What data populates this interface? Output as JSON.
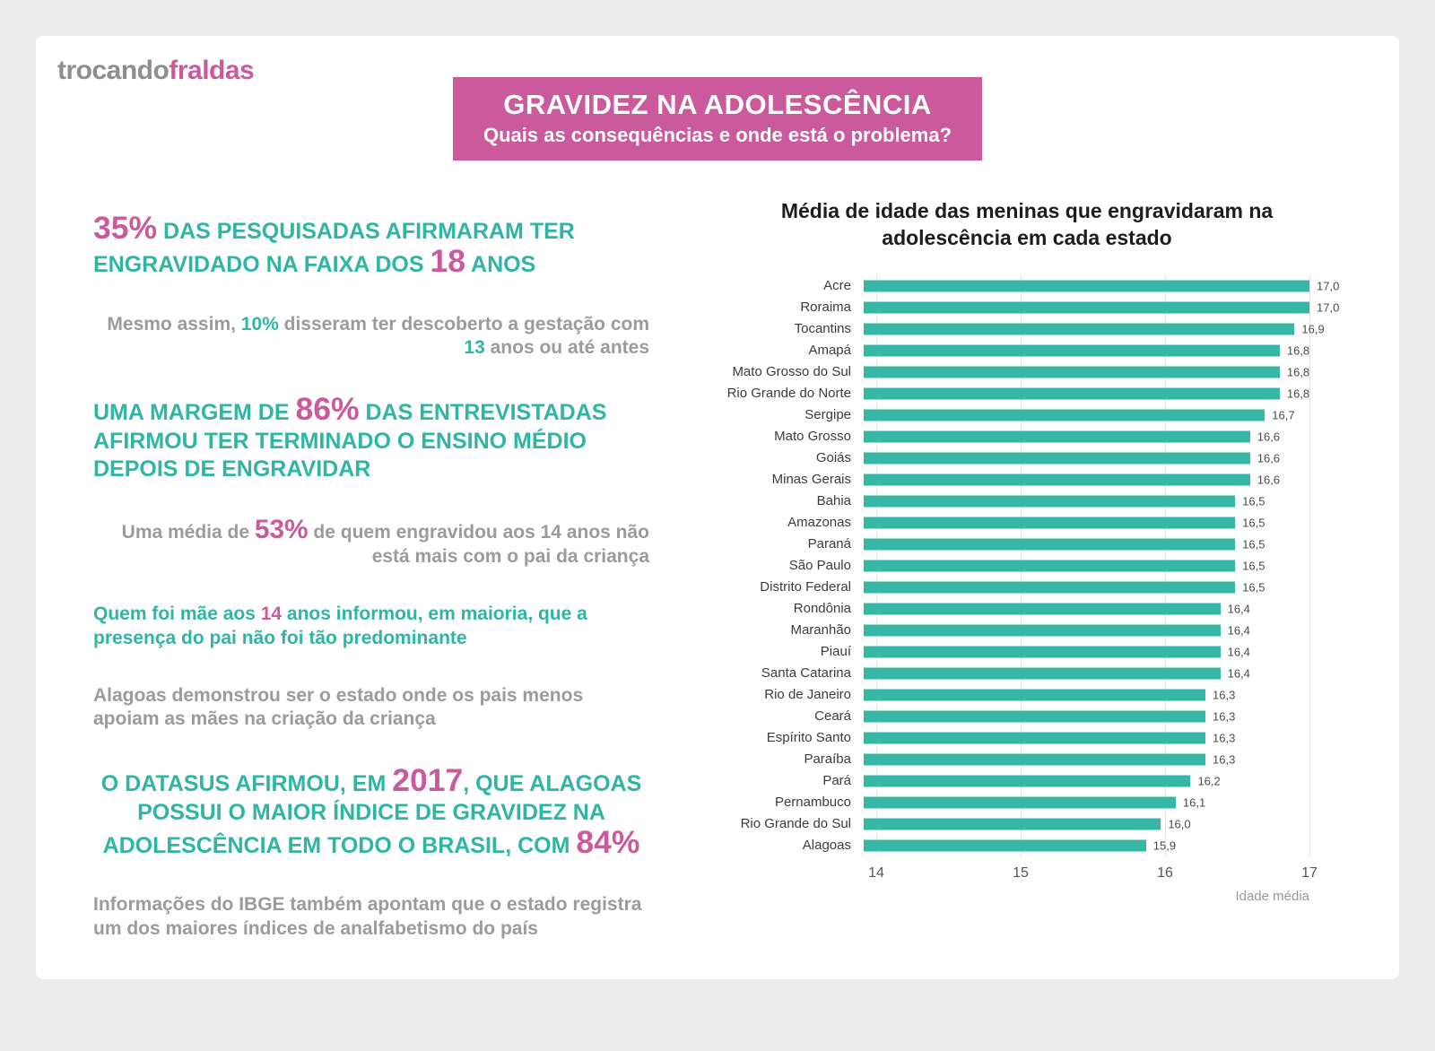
{
  "logo": {
    "part1": "trocando",
    "part2": "fraldas"
  },
  "header": {
    "title": "GRAVIDEZ NA ADOLESCÊNCIA",
    "subtitle": "Quais as consequências e onde está o problema?"
  },
  "colors": {
    "teal": "#2fb5a4",
    "pink": "#cb5a9c",
    "grey": "#9b9b9b",
    "bar": "#35b7a6"
  },
  "stats": [
    {
      "align": "left",
      "kind": "headline",
      "segments": [
        {
          "text": "35%",
          "style": "pink-big"
        },
        {
          "text": " DAS PESQUISADAS AFIRMARAM TER ENGRAVIDADO NA FAIXA DOS ",
          "style": "teal"
        },
        {
          "text": "18",
          "style": "pink-big"
        },
        {
          "text": " ANOS",
          "style": "teal"
        }
      ]
    },
    {
      "align": "right",
      "kind": "note",
      "segments": [
        {
          "text": "Mesmo assim, ",
          "style": "grey"
        },
        {
          "text": "10%",
          "style": "teal"
        },
        {
          "text": " disseram ter descoberto a gestação com ",
          "style": "grey"
        },
        {
          "text": "13",
          "style": "teal"
        },
        {
          "text": " anos ou até antes",
          "style": "grey"
        }
      ]
    },
    {
      "align": "left",
      "kind": "headline",
      "segments": [
        {
          "text": "UMA MARGEM DE ",
          "style": "teal"
        },
        {
          "text": "86%",
          "style": "pink-big"
        },
        {
          "text": " DAS ENTREVISTADAS AFIRMOU TER TERMINADO O ENSINO MÉDIO DEPOIS DE ENGRAVIDAR",
          "style": "teal"
        }
      ]
    },
    {
      "align": "right",
      "kind": "note",
      "segments": [
        {
          "text": "Uma média de ",
          "style": "grey"
        },
        {
          "text": "53%",
          "style": "pink-big"
        },
        {
          "text": " de quem engravidou aos 14 anos não está mais com o pai da criança",
          "style": "grey"
        }
      ]
    },
    {
      "align": "left",
      "kind": "note",
      "segments": [
        {
          "text": "Quem foi mãe aos ",
          "style": "teal"
        },
        {
          "text": "14",
          "style": "pink"
        },
        {
          "text": " anos informou, em maioria, que a presença do pai não foi tão predominante",
          "style": "teal"
        }
      ]
    },
    {
      "align": "left",
      "kind": "note",
      "segments": [
        {
          "text": "Alagoas demonstrou ser o estado onde os pais menos apoiam as mães na criação da criança",
          "style": "grey"
        }
      ]
    },
    {
      "align": "center",
      "kind": "headline",
      "segments": [
        {
          "text": "O DATASUS AFIRMOU, EM ",
          "style": "teal"
        },
        {
          "text": "2017",
          "style": "pink-big"
        },
        {
          "text": ", QUE ALAGOAS POSSUI O MAIOR ÍNDICE DE GRAVIDEZ NA ADOLESCÊNCIA EM TODO O BRASIL, COM ",
          "style": "teal"
        },
        {
          "text": "84%",
          "style": "pink-big"
        }
      ]
    },
    {
      "align": "left",
      "kind": "note",
      "segments": [
        {
          "text": "Informações do IBGE também apontam que o estado registra um dos maiores índices de analfabetismo do país",
          "style": "grey"
        }
      ]
    }
  ],
  "chart_data": {
    "type": "bar",
    "orientation": "horizontal",
    "title": "Média de idade das meninas que engravidaram na adolescência em cada estado",
    "xlabel": "Idade média",
    "xlim": [
      14,
      17
    ],
    "xticks": [
      14,
      15,
      16,
      17
    ],
    "grid": true,
    "bar_color": "#35b7a6",
    "categories": [
      "Acre",
      "Roraima",
      "Tocantins",
      "Amapá",
      "Mato Grosso do Sul",
      "Rio Grande do Norte",
      "Sergipe",
      "Mato Grosso",
      "Goiás",
      "Minas Gerais",
      "Bahia",
      "Amazonas",
      "Paraná",
      "São Paulo",
      "Distrito Federal",
      "Rondônia",
      "Maranhão",
      "Piauí",
      "Santa Catarina",
      "Rio de Janeiro",
      "Ceará",
      "Espírito Santo",
      "Paraíba",
      "Pará",
      "Pernambuco",
      "Rio Grande do Sul",
      "Alagoas"
    ],
    "values": [
      17.0,
      17.0,
      16.9,
      16.8,
      16.8,
      16.8,
      16.7,
      16.6,
      16.6,
      16.6,
      16.5,
      16.5,
      16.5,
      16.5,
      16.5,
      16.4,
      16.4,
      16.4,
      16.4,
      16.3,
      16.3,
      16.3,
      16.3,
      16.2,
      16.1,
      16.0,
      15.9
    ],
    "value_labels": [
      "17,0",
      "17,0",
      "16,9",
      "16,8",
      "16,8",
      "16,8",
      "16,7",
      "16,6",
      "16,6",
      "16,6",
      "16,5",
      "16,5",
      "16,5",
      "16,5",
      "16,5",
      "16,4",
      "16,4",
      "16,4",
      "16,4",
      "16,3",
      "16,3",
      "16,3",
      "16,3",
      "16,2",
      "16,1",
      "16,0",
      "15,9"
    ]
  }
}
